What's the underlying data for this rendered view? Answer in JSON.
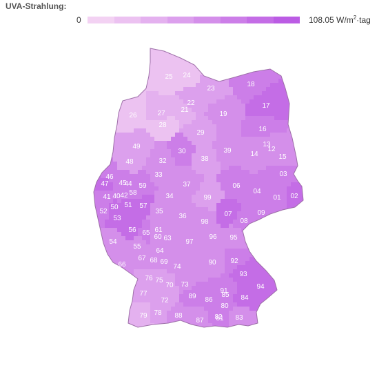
{
  "legend": {
    "title": "UVA-Strahlung:",
    "min_label": "0",
    "max_value": "108.05",
    "max_unit_pre": "W/m",
    "max_unit_sup": "2",
    "max_unit_post": "·tag",
    "scale_colors": [
      "#f3d2f3",
      "#ecc2f1",
      "#e4b1ef",
      "#dca0ed",
      "#d48fea",
      "#cc7ee8",
      "#c46de6",
      "#bb5ce4"
    ]
  },
  "regions": [
    {
      "code": "24",
      "shade": 1
    },
    {
      "code": "25",
      "shade": 1
    },
    {
      "code": "26",
      "shade": 1
    },
    {
      "code": "27",
      "shade": 2
    },
    {
      "code": "28",
      "shade": 1
    },
    {
      "code": "21",
      "shade": 2
    },
    {
      "code": "22",
      "shade": 3
    },
    {
      "code": "23",
      "shade": 3
    },
    {
      "code": "18",
      "shade": 5
    },
    {
      "code": "17",
      "shade": 6
    },
    {
      "code": "19",
      "shade": 4
    },
    {
      "code": "16",
      "shade": 5
    },
    {
      "code": "29",
      "shade": 3
    },
    {
      "code": "49",
      "shade": 3
    },
    {
      "code": "48",
      "shade": 3
    },
    {
      "code": "30",
      "shade": 5
    },
    {
      "code": "32",
      "shade": 4
    },
    {
      "code": "38",
      "shade": 3
    },
    {
      "code": "39",
      "shade": 4
    },
    {
      "code": "14",
      "shade": 4
    },
    {
      "code": "13",
      "shade": 4
    },
    {
      "code": "12",
      "shade": 4
    },
    {
      "code": "15",
      "shade": 4
    },
    {
      "code": "03",
      "shade": 5
    },
    {
      "code": "46",
      "shade": 5
    },
    {
      "code": "45",
      "shade": 5
    },
    {
      "code": "44",
      "shade": 5
    },
    {
      "code": "33",
      "shade": 4
    },
    {
      "code": "59",
      "shade": 5
    },
    {
      "code": "37",
      "shade": 4
    },
    {
      "code": "06",
      "shade": 5
    },
    {
      "code": "04",
      "shade": 5
    },
    {
      "code": "01",
      "shade": 5
    },
    {
      "code": "02",
      "shade": 6
    },
    {
      "code": "47",
      "shade": 6
    },
    {
      "code": "41",
      "shade": 5
    },
    {
      "code": "40",
      "shade": 5
    },
    {
      "code": "42",
      "shade": 5
    },
    {
      "code": "58",
      "shade": 5
    },
    {
      "code": "34",
      "shade": 4
    },
    {
      "code": "99",
      "shade": 3
    },
    {
      "code": "52",
      "shade": 5
    },
    {
      "code": "50",
      "shade": 6
    },
    {
      "code": "51",
      "shade": 6
    },
    {
      "code": "57",
      "shade": 6
    },
    {
      "code": "35",
      "shade": 4
    },
    {
      "code": "07",
      "shade": 6
    },
    {
      "code": "09",
      "shade": 5
    },
    {
      "code": "36",
      "shade": 4
    },
    {
      "code": "53",
      "shade": 6
    },
    {
      "code": "98",
      "shade": 4
    },
    {
      "code": "08",
      "shade": 5
    },
    {
      "code": "56",
      "shade": 6
    },
    {
      "code": "65",
      "shade": 5
    },
    {
      "code": "61",
      "shade": 4
    },
    {
      "code": "60",
      "shade": 4
    },
    {
      "code": "63",
      "shade": 4
    },
    {
      "code": "96",
      "shade": 4
    },
    {
      "code": "95",
      "shade": 4
    },
    {
      "code": "54",
      "shade": 4
    },
    {
      "code": "55",
      "shade": 4
    },
    {
      "code": "97",
      "shade": 4
    },
    {
      "code": "64",
      "shade": 4
    },
    {
      "code": "67",
      "shade": 4
    },
    {
      "code": "68",
      "shade": 4
    },
    {
      "code": "69",
      "shade": 4
    },
    {
      "code": "66",
      "shade": 4
    },
    {
      "code": "74",
      "shade": 4
    },
    {
      "code": "90",
      "shade": 4
    },
    {
      "code": "92",
      "shade": 5
    },
    {
      "code": "93",
      "shade": 6
    },
    {
      "code": "76",
      "shade": 3
    },
    {
      "code": "75",
      "shade": 3
    },
    {
      "code": "70",
      "shade": 3
    },
    {
      "code": "73",
      "shade": 4
    },
    {
      "code": "94",
      "shade": 6
    },
    {
      "code": "91",
      "shade": 5
    },
    {
      "code": "77",
      "shade": 3
    },
    {
      "code": "89",
      "shade": 5
    },
    {
      "code": "86",
      "shade": 5
    },
    {
      "code": "85",
      "shade": 5
    },
    {
      "code": "84",
      "shade": 6
    },
    {
      "code": "72",
      "shade": 3
    },
    {
      "code": "80",
      "shade": 5
    },
    {
      "code": "78",
      "shade": 3
    },
    {
      "code": "88",
      "shade": 4
    },
    {
      "code": "87",
      "shade": 4
    },
    {
      "code": "82",
      "shade": 5
    },
    {
      "code": "81",
      "shade": 5
    },
    {
      "code": "83",
      "shade": 4
    },
    {
      "code": "79",
      "shade": 2
    }
  ]
}
